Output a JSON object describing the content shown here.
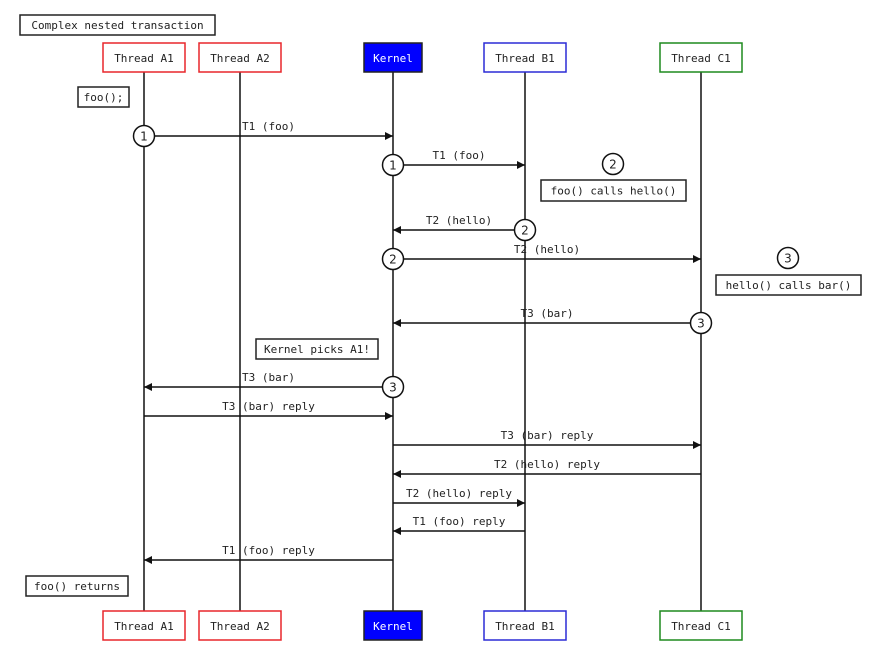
{
  "title": "Complex nested transaction",
  "participants": [
    {
      "id": "A1",
      "label": "Thread A1",
      "border": "#e8262b",
      "fill": "#ffffff",
      "text": "#222222"
    },
    {
      "id": "A2",
      "label": "Thread A2",
      "border": "#e8262b",
      "fill": "#ffffff",
      "text": "#222222"
    },
    {
      "id": "K",
      "label": "Kernel",
      "border": "#222222",
      "fill": "#0000ff",
      "text": "#ffffff"
    },
    {
      "id": "B1",
      "label": "Thread B1",
      "border": "#2b2bd6",
      "fill": "#ffffff",
      "text": "#222222"
    },
    {
      "id": "C1",
      "label": "Thread C1",
      "border": "#1e8a1e",
      "fill": "#ffffff",
      "text": "#222222"
    }
  ],
  "messages": [
    {
      "from": "A1",
      "to": "K",
      "label": "T1 (foo)",
      "step": "1"
    },
    {
      "from": "K",
      "to": "B1",
      "label": "T1 (foo)",
      "step": "1"
    },
    {
      "from": "B1",
      "to": "K",
      "label": "T2 (hello)",
      "step": "2"
    },
    {
      "from": "K",
      "to": "C1",
      "label": "T2 (hello)",
      "step": "2"
    },
    {
      "from": "C1",
      "to": "K",
      "label": "T3 (bar)",
      "step": "3"
    },
    {
      "from": "K",
      "to": "A1",
      "label": "T3 (bar)",
      "step": "3"
    },
    {
      "from": "A1",
      "to": "K",
      "label": "T3 (bar) reply"
    },
    {
      "from": "K",
      "to": "C1",
      "label": "T3 (bar) reply"
    },
    {
      "from": "C1",
      "to": "K",
      "label": "T2 (hello) reply"
    },
    {
      "from": "K",
      "to": "B1",
      "label": "T2 (hello) reply"
    },
    {
      "from": "B1",
      "to": "K",
      "label": "T1 (foo) reply"
    },
    {
      "from": "K",
      "to": "A1",
      "label": "T1 (foo) reply"
    }
  ],
  "notes": [
    {
      "text": "foo();"
    },
    {
      "text": "foo() calls hello()",
      "step": "2"
    },
    {
      "text": "hello() calls bar()",
      "step": "3"
    },
    {
      "text": "Kernel picks A1!"
    },
    {
      "text": "foo() returns"
    }
  ]
}
